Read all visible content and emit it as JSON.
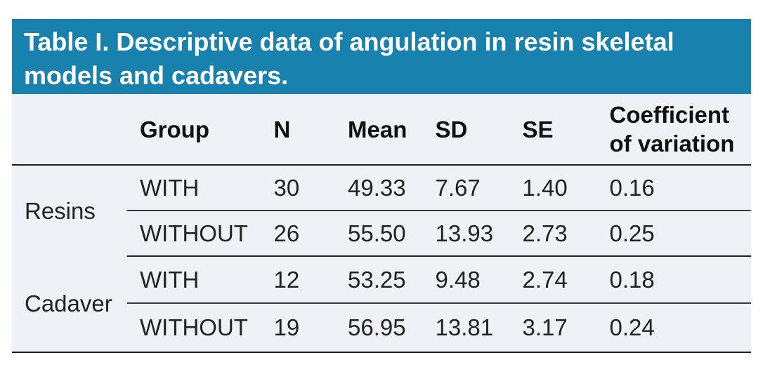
{
  "colors": {
    "header_bg": "#1881ae",
    "body_bg": "#eef1f5",
    "title_text": "#ffffff",
    "header_text": "#101010",
    "body_text": "#222222",
    "rule_strong": "#1f1f1f",
    "rule_light": "#3a3a3a"
  },
  "table": {
    "title": "Table I. Descriptive data of angulation in resin skeletal models and cadavers.",
    "columns": [
      "",
      "Group",
      "N",
      "Mean",
      "SD",
      "SE",
      "Coefficient of variation"
    ],
    "groups": [
      {
        "label": "Resins",
        "rows": [
          {
            "group": "WITH",
            "n": "30",
            "mean": "49.33",
            "sd": "7.67",
            "se": "1.40",
            "cv": "0.16"
          },
          {
            "group": "WITHOUT",
            "n": "26",
            "mean": "55.50",
            "sd": "13.93",
            "se": "2.73",
            "cv": "0.25"
          }
        ]
      },
      {
        "label": "Cadaver",
        "rows": [
          {
            "group": "WITH",
            "n": "12",
            "mean": "53.25",
            "sd": "9.48",
            "se": "2.74",
            "cv": "0.18"
          },
          {
            "group": "WITHOUT",
            "n": "19",
            "mean": "56.95",
            "sd": "13.81",
            "se": "3.17",
            "cv": "0.24"
          }
        ]
      }
    ]
  },
  "chart_data": {
    "type": "table",
    "title": "Table I. Descriptive data of angulation in resin skeletal models and cadavers.",
    "columns": [
      "",
      "Group",
      "N",
      "Mean",
      "SD",
      "SE",
      "Coefficient of variation"
    ],
    "rows": [
      [
        "Resins",
        "WITH",
        30,
        49.33,
        7.67,
        1.4,
        0.16
      ],
      [
        "Resins",
        "WITHOUT",
        26,
        55.5,
        13.93,
        2.73,
        0.25
      ],
      [
        "Cadaver",
        "WITH",
        12,
        53.25,
        9.48,
        2.74,
        0.18
      ],
      [
        "Cadaver",
        "WITHOUT",
        19,
        56.95,
        13.81,
        3.17,
        0.24
      ]
    ]
  }
}
